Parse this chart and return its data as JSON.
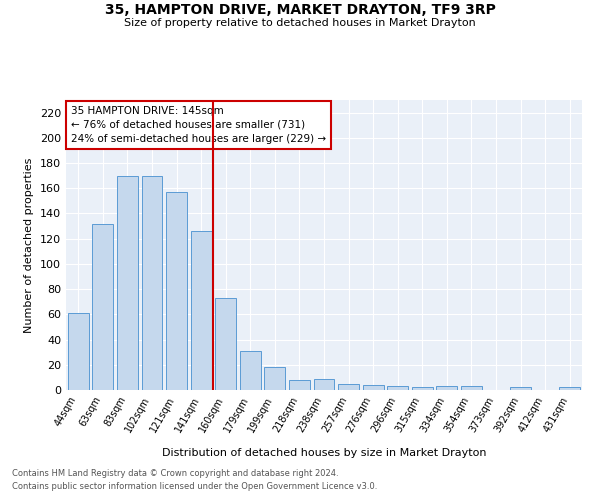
{
  "title": "35, HAMPTON DRIVE, MARKET DRAYTON, TF9 3RP",
  "subtitle": "Size of property relative to detached houses in Market Drayton",
  "xlabel": "Distribution of detached houses by size in Market Drayton",
  "ylabel": "Number of detached properties",
  "categories": [
    "44sqm",
    "63sqm",
    "83sqm",
    "102sqm",
    "121sqm",
    "141sqm",
    "160sqm",
    "179sqm",
    "199sqm",
    "218sqm",
    "238sqm",
    "257sqm",
    "276sqm",
    "296sqm",
    "315sqm",
    "334sqm",
    "354sqm",
    "373sqm",
    "392sqm",
    "412sqm",
    "431sqm"
  ],
  "values": [
    61,
    132,
    170,
    170,
    157,
    126,
    73,
    31,
    18,
    8,
    9,
    5,
    4,
    3,
    2,
    3,
    3,
    0,
    2,
    0,
    2
  ],
  "bar_color": "#c5d8ed",
  "bar_edge_color": "#5b9bd5",
  "vline_x": 5.5,
  "vline_color": "#cc0000",
  "annotation_title": "35 HAMPTON DRIVE: 145sqm",
  "annotation_line1": "← 76% of detached houses are smaller (731)",
  "annotation_line2": "24% of semi-detached houses are larger (229) →",
  "annotation_box_color": "#cc0000",
  "ylim": [
    0,
    230
  ],
  "yticks": [
    0,
    20,
    40,
    60,
    80,
    100,
    120,
    140,
    160,
    180,
    200,
    220
  ],
  "bg_color": "#eaf0f8",
  "footnote1": "Contains HM Land Registry data © Crown copyright and database right 2024.",
  "footnote2": "Contains public sector information licensed under the Open Government Licence v3.0."
}
